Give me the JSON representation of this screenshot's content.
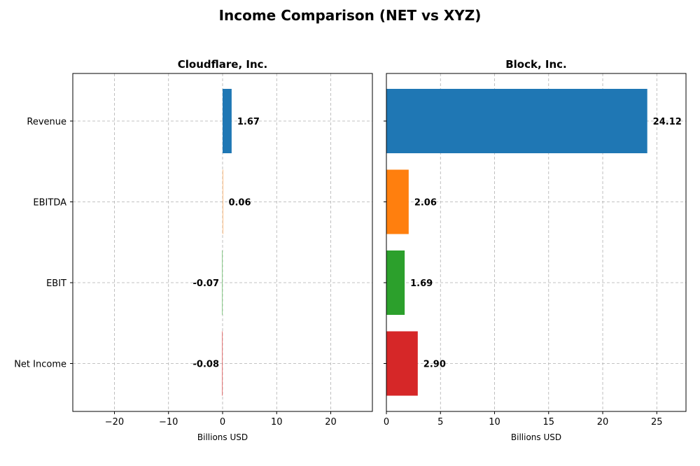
{
  "figure": {
    "title": "Income Comparison (NET vs XYZ)"
  },
  "chart_data": [
    {
      "type": "bar",
      "orientation": "horizontal",
      "title": "Cloudflare, Inc.",
      "xlabel": "Billions USD",
      "ylabel": "",
      "categories": [
        "Revenue",
        "EBITDA",
        "EBIT",
        "Net Income"
      ],
      "values": [
        1.67,
        0.06,
        -0.07,
        -0.08
      ],
      "value_labels": [
        "1.67",
        "0.06",
        "-0.07",
        "-0.08"
      ],
      "colors": [
        "#1f77b4",
        "#ff7f0e",
        "#2ca02c",
        "#d62728"
      ],
      "xlim": [
        -27.7,
        27.7
      ],
      "xticks": [
        -20,
        -10,
        0,
        10,
        20
      ],
      "xtick_labels": [
        "−20",
        "−10",
        "0",
        "10",
        "20"
      ],
      "grid": true,
      "show_category_labels": true
    },
    {
      "type": "bar",
      "orientation": "horizontal",
      "title": "Block, Inc.",
      "xlabel": "Billions USD",
      "ylabel": "",
      "categories": [
        "Revenue",
        "EBITDA",
        "EBIT",
        "Net Income"
      ],
      "values": [
        24.12,
        2.06,
        1.69,
        2.9
      ],
      "value_labels": [
        "24.12",
        "2.06",
        "1.69",
        "2.90"
      ],
      "colors": [
        "#1f77b4",
        "#ff7f0e",
        "#2ca02c",
        "#d62728"
      ],
      "xlim": [
        0,
        27.7
      ],
      "xticks": [
        0,
        5,
        10,
        15,
        20,
        25
      ],
      "xtick_labels": [
        "0",
        "5",
        "10",
        "15",
        "20",
        "25"
      ],
      "grid": true,
      "show_category_labels": false
    }
  ]
}
